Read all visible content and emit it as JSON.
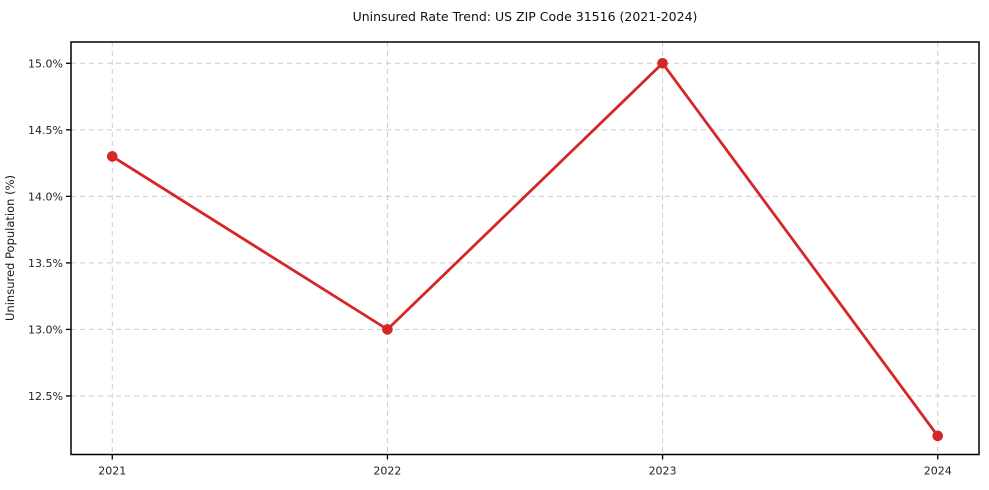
{
  "chart_data": {
    "type": "line",
    "title": "Uninsured Rate Trend: US ZIP Code 31516 (2021-2024)",
    "xlabel": "",
    "ylabel": "Uninsured Population (%)",
    "categories": [
      "2021",
      "2022",
      "2023",
      "2024"
    ],
    "x": [
      2021,
      2022,
      2023,
      2024
    ],
    "values": [
      14.3,
      13.0,
      15.0,
      12.2
    ],
    "y_ticks": [
      12.5,
      13.0,
      13.5,
      14.0,
      14.5,
      15.0
    ],
    "y_tick_labels": [
      "12.5%",
      "13.0%",
      "13.5%",
      "14.0%",
      "14.5%",
      "15.0%"
    ],
    "xlim": [
      2020.85,
      2024.15
    ],
    "ylim": [
      12.06,
      15.16
    ],
    "grid": true,
    "legend": "none",
    "line_color": "#d62728",
    "marker_color": "#d62728",
    "grid_color": "#cccccc",
    "spine_color": "#000000",
    "text_color": "#222222",
    "background_color": "#ffffff"
  }
}
